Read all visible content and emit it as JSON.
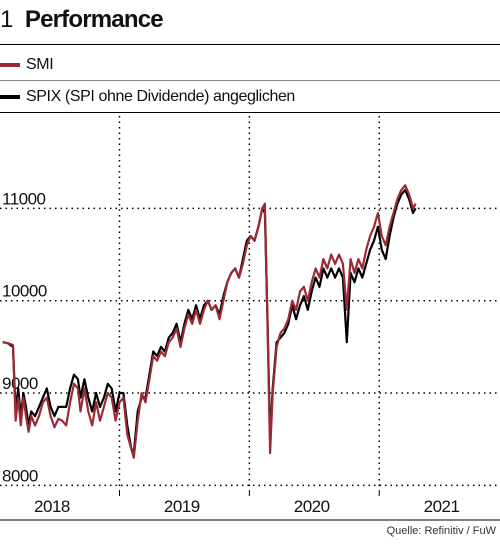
{
  "figure": {
    "number": "1",
    "title": "Performance"
  },
  "source": "Quelle: Refinitiv / FuW",
  "colors": {
    "smi": "#9b2a35",
    "spix": "#000000",
    "grid": "#000000"
  },
  "chart_data": {
    "type": "line",
    "title": "Performance",
    "xlabel": "",
    "ylabel": "",
    "x_ticks": [
      "2018",
      "2019",
      "2020",
      "2021"
    ],
    "y_ticks": [
      "8000",
      "9000",
      "10000",
      "11000"
    ],
    "ylim": [
      7950,
      12000
    ],
    "xlim": [
      2017.6,
      2021.45
    ],
    "grid": true,
    "legend_position": "top-left",
    "series": [
      {
        "name": "SMI",
        "color": "#9b2a35",
        "points": [
          [
            2017.62,
            9550
          ],
          [
            2017.66,
            9540
          ],
          [
            2017.7,
            9520
          ],
          [
            2017.72,
            8700
          ],
          [
            2017.74,
            8950
          ],
          [
            2017.76,
            8650
          ],
          [
            2017.78,
            8950
          ],
          [
            2017.8,
            8750
          ],
          [
            2017.82,
            8580
          ],
          [
            2017.84,
            8750
          ],
          [
            2017.87,
            8650
          ],
          [
            2017.9,
            8750
          ],
          [
            2017.93,
            8900
          ],
          [
            2017.96,
            8950
          ],
          [
            2017.99,
            8750
          ],
          [
            2018.02,
            8630
          ],
          [
            2018.05,
            8720
          ],
          [
            2018.08,
            8700
          ],
          [
            2018.11,
            8650
          ],
          [
            2018.14,
            8900
          ],
          [
            2018.17,
            9100
          ],
          [
            2018.2,
            9050
          ],
          [
            2018.22,
            8800
          ],
          [
            2018.25,
            9050
          ],
          [
            2018.28,
            8800
          ],
          [
            2018.31,
            8650
          ],
          [
            2018.34,
            8900
          ],
          [
            2018.37,
            8700
          ],
          [
            2018.4,
            8850
          ],
          [
            2018.43,
            9000
          ],
          [
            2018.46,
            8950
          ],
          [
            2018.49,
            8700
          ],
          [
            2018.52,
            8900
          ],
          [
            2018.55,
            8950
          ],
          [
            2018.58,
            8550
          ],
          [
            2018.61,
            8400
          ],
          [
            2018.63,
            8300
          ],
          [
            2018.66,
            8700
          ],
          [
            2018.69,
            9000
          ],
          [
            2018.72,
            8900
          ],
          [
            2018.75,
            9150
          ],
          [
            2018.78,
            9400
          ],
          [
            2018.81,
            9350
          ],
          [
            2018.84,
            9450
          ],
          [
            2018.87,
            9400
          ],
          [
            2018.9,
            9550
          ],
          [
            2018.93,
            9600
          ],
          [
            2018.96,
            9700
          ],
          [
            2018.99,
            9500
          ],
          [
            2019.02,
            9700
          ],
          [
            2019.05,
            9850
          ],
          [
            2019.08,
            9750
          ],
          [
            2019.11,
            9900
          ],
          [
            2019.14,
            9750
          ],
          [
            2019.17,
            9900
          ],
          [
            2019.2,
            10000
          ],
          [
            2019.23,
            9900
          ],
          [
            2019.26,
            9950
          ],
          [
            2019.29,
            9800
          ],
          [
            2019.32,
            10000
          ],
          [
            2019.35,
            10200
          ],
          [
            2019.38,
            10300
          ],
          [
            2019.41,
            10350
          ],
          [
            2019.44,
            10250
          ],
          [
            2019.47,
            10400
          ],
          [
            2019.5,
            10600
          ],
          [
            2019.53,
            10700
          ],
          [
            2019.56,
            10650
          ],
          [
            2019.59,
            10800
          ],
          [
            2019.62,
            11000
          ],
          [
            2019.64,
            11050
          ],
          [
            2019.66,
            9750
          ],
          [
            2019.68,
            8350
          ],
          [
            2019.7,
            9000
          ],
          [
            2019.73,
            9500
          ],
          [
            2019.76,
            9650
          ],
          [
            2019.79,
            9700
          ],
          [
            2019.82,
            9800
          ],
          [
            2019.85,
            10000
          ],
          [
            2019.88,
            9900
          ],
          [
            2019.91,
            10100
          ],
          [
            2019.94,
            10150
          ],
          [
            2019.97,
            10000
          ],
          [
            2020.0,
            10200
          ],
          [
            2020.03,
            10350
          ],
          [
            2020.06,
            10250
          ],
          [
            2020.09,
            10450
          ],
          [
            2020.12,
            10350
          ],
          [
            2020.15,
            10500
          ],
          [
            2020.18,
            10400
          ],
          [
            2020.21,
            10500
          ],
          [
            2020.24,
            10400
          ],
          [
            2020.27,
            9900
          ],
          [
            2020.3,
            10450
          ],
          [
            2020.33,
            10300
          ],
          [
            2020.36,
            10450
          ],
          [
            2020.39,
            10350
          ],
          [
            2020.42,
            10550
          ],
          [
            2020.45,
            10700
          ],
          [
            2020.48,
            10800
          ],
          [
            2020.51,
            10950
          ],
          [
            2020.54,
            10700
          ],
          [
            2020.57,
            10600
          ],
          [
            2020.6,
            10800
          ],
          [
            2020.63,
            10950
          ],
          [
            2020.66,
            11100
          ],
          [
            2020.69,
            11200
          ],
          [
            2020.72,
            11250
          ],
          [
            2020.75,
            11150
          ],
          [
            2020.78,
            11000
          ],
          [
            2020.8,
            11050
          ]
        ]
      },
      {
        "name": "SPIX (SPI ohne Dividende) angeglichen",
        "color": "#000000",
        "points": [
          [
            2017.62,
            9550
          ],
          [
            2017.66,
            9540
          ],
          [
            2017.7,
            9500
          ],
          [
            2017.72,
            8800
          ],
          [
            2017.74,
            9050
          ],
          [
            2017.76,
            8750
          ],
          [
            2017.78,
            9000
          ],
          [
            2017.8,
            8850
          ],
          [
            2017.82,
            8650
          ],
          [
            2017.84,
            8800
          ],
          [
            2017.87,
            8750
          ],
          [
            2017.9,
            8850
          ],
          [
            2017.93,
            8950
          ],
          [
            2017.96,
            9050
          ],
          [
            2017.99,
            8850
          ],
          [
            2018.02,
            8750
          ],
          [
            2018.05,
            8850
          ],
          [
            2018.08,
            8850
          ],
          [
            2018.11,
            8850
          ],
          [
            2018.14,
            9050
          ],
          [
            2018.17,
            9200
          ],
          [
            2018.2,
            9150
          ],
          [
            2018.22,
            8950
          ],
          [
            2018.25,
            9150
          ],
          [
            2018.28,
            8950
          ],
          [
            2018.31,
            8800
          ],
          [
            2018.34,
            9000
          ],
          [
            2018.37,
            8850
          ],
          [
            2018.4,
            8950
          ],
          [
            2018.43,
            9100
          ],
          [
            2018.46,
            9050
          ],
          [
            2018.49,
            8800
          ],
          [
            2018.52,
            9000
          ],
          [
            2018.55,
            9000
          ],
          [
            2018.58,
            8650
          ],
          [
            2018.61,
            8400
          ],
          [
            2018.63,
            8350
          ],
          [
            2018.66,
            8800
          ],
          [
            2018.69,
            8950
          ],
          [
            2018.72,
            8950
          ],
          [
            2018.75,
            9200
          ],
          [
            2018.78,
            9450
          ],
          [
            2018.81,
            9400
          ],
          [
            2018.84,
            9500
          ],
          [
            2018.87,
            9450
          ],
          [
            2018.9,
            9600
          ],
          [
            2018.93,
            9650
          ],
          [
            2018.96,
            9750
          ],
          [
            2018.99,
            9550
          ],
          [
            2019.02,
            9750
          ],
          [
            2019.05,
            9900
          ],
          [
            2019.08,
            9800
          ],
          [
            2019.11,
            9950
          ],
          [
            2019.14,
            9800
          ],
          [
            2019.17,
            9950
          ],
          [
            2019.2,
            10000
          ],
          [
            2019.23,
            9900
          ],
          [
            2019.26,
            9950
          ],
          [
            2019.29,
            9850
          ],
          [
            2019.32,
            10050
          ],
          [
            2019.35,
            10200
          ],
          [
            2019.38,
            10300
          ],
          [
            2019.41,
            10350
          ],
          [
            2019.44,
            10250
          ],
          [
            2019.47,
            10450
          ],
          [
            2019.5,
            10650
          ],
          [
            2019.53,
            10700
          ],
          [
            2019.56,
            10650
          ],
          [
            2019.59,
            10800
          ],
          [
            2019.62,
            11000
          ],
          [
            2019.64,
            10950
          ],
          [
            2019.66,
            9800
          ],
          [
            2019.68,
            8500
          ],
          [
            2019.7,
            9050
          ],
          [
            2019.73,
            9550
          ],
          [
            2019.76,
            9600
          ],
          [
            2019.79,
            9650
          ],
          [
            2019.82,
            9750
          ],
          [
            2019.85,
            9950
          ],
          [
            2019.88,
            9800
          ],
          [
            2019.91,
            9950
          ],
          [
            2019.94,
            10050
          ],
          [
            2019.97,
            9900
          ],
          [
            2020.0,
            10100
          ],
          [
            2020.03,
            10250
          ],
          [
            2020.06,
            10150
          ],
          [
            2020.09,
            10350
          ],
          [
            2020.12,
            10250
          ],
          [
            2020.15,
            10350
          ],
          [
            2020.18,
            10250
          ],
          [
            2020.21,
            10350
          ],
          [
            2020.24,
            10250
          ],
          [
            2020.27,
            9550
          ],
          [
            2020.3,
            10300
          ],
          [
            2020.33,
            10200
          ],
          [
            2020.36,
            10350
          ],
          [
            2020.39,
            10250
          ],
          [
            2020.42,
            10400
          ],
          [
            2020.45,
            10550
          ],
          [
            2020.48,
            10650
          ],
          [
            2020.51,
            10800
          ],
          [
            2020.54,
            10550
          ],
          [
            2020.57,
            10450
          ],
          [
            2020.6,
            10700
          ],
          [
            2020.63,
            10900
          ],
          [
            2020.66,
            11050
          ],
          [
            2020.69,
            11150
          ],
          [
            2020.72,
            11200
          ],
          [
            2020.75,
            11100
          ],
          [
            2020.78,
            10950
          ],
          [
            2020.8,
            11000
          ]
        ]
      }
    ]
  }
}
